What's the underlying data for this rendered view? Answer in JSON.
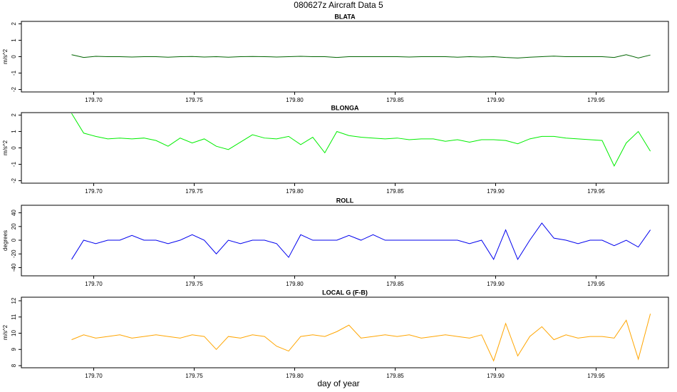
{
  "title": "080627z   Aircraft Data 5",
  "xlabel": "day of year",
  "chart_data": [
    {
      "type": "line",
      "title": "BLATA",
      "ylabel": "m/s^2",
      "color": "#006400",
      "x": [
        179.689,
        179.695,
        179.701,
        179.707,
        179.713,
        179.719,
        179.725,
        179.731,
        179.737,
        179.743,
        179.749,
        179.755,
        179.761,
        179.767,
        179.773,
        179.779,
        179.785,
        179.791,
        179.797,
        179.803,
        179.809,
        179.815,
        179.821,
        179.827,
        179.833,
        179.839,
        179.845,
        179.851,
        179.857,
        179.863,
        179.869,
        179.875,
        179.881,
        179.887,
        179.893,
        179.899,
        179.905,
        179.911,
        179.917,
        179.923,
        179.929,
        179.935,
        179.941,
        179.947,
        179.953,
        179.959,
        179.965,
        179.971,
        179.977
      ],
      "values": [
        0.12,
        -0.05,
        0.02,
        0,
        0,
        -0.02,
        0,
        0,
        -0.03,
        0,
        0.01,
        -0.02,
        0,
        -0.03,
        0,
        0.01,
        0,
        -0.02,
        0,
        0.02,
        0,
        0,
        -0.05,
        0,
        0,
        0,
        0,
        0,
        -0.02,
        0,
        0,
        0,
        -0.03,
        0,
        -0.02,
        0,
        -0.05,
        -0.08,
        -0.03,
        0,
        0.03,
        0,
        0,
        0,
        0,
        -0.05,
        0.12,
        -0.08,
        0.1
      ],
      "xlim": [
        179.664,
        179.986
      ],
      "ylim": [
        -2.15,
        2.15
      ],
      "xticks": [
        {
          "value": 179.7,
          "label": "179.70"
        },
        {
          "value": 179.75,
          "label": "179.75"
        },
        {
          "value": 179.8,
          "label": "179.80"
        },
        {
          "value": 179.85,
          "label": "179.85"
        },
        {
          "value": 179.9,
          "label": "179.90"
        },
        {
          "value": 179.95,
          "label": "179.95"
        }
      ],
      "yticks": [
        -2,
        -1,
        0,
        1,
        2
      ]
    },
    {
      "type": "line",
      "title": "BLONGA",
      "ylabel": "m/s^2",
      "color": "#00ee00",
      "x": [
        179.689,
        179.695,
        179.701,
        179.707,
        179.713,
        179.719,
        179.725,
        179.731,
        179.737,
        179.743,
        179.749,
        179.755,
        179.761,
        179.767,
        179.773,
        179.779,
        179.785,
        179.791,
        179.797,
        179.803,
        179.809,
        179.815,
        179.821,
        179.827,
        179.833,
        179.839,
        179.845,
        179.851,
        179.857,
        179.863,
        179.869,
        179.875,
        179.881,
        179.887,
        179.893,
        179.899,
        179.905,
        179.911,
        179.917,
        179.923,
        179.929,
        179.935,
        179.941,
        179.947,
        179.953,
        179.959,
        179.965,
        179.971,
        179.977
      ],
      "values": [
        2.1,
        0.9,
        0.7,
        0.55,
        0.6,
        0.55,
        0.6,
        0.45,
        0.1,
        0.6,
        0.3,
        0.55,
        0.1,
        -0.1,
        0.35,
        0.8,
        0.6,
        0.55,
        0.7,
        0.2,
        0.65,
        -0.3,
        1.0,
        0.75,
        0.65,
        0.6,
        0.55,
        0.6,
        0.5,
        0.55,
        0.55,
        0.4,
        0.5,
        0.35,
        0.5,
        0.5,
        0.45,
        0.25,
        0.55,
        0.7,
        0.7,
        0.6,
        0.55,
        0.5,
        0.45,
        -1.1,
        0.3,
        1.0,
        -0.2
      ],
      "xlim": [
        179.664,
        179.986
      ],
      "ylim": [
        -2.15,
        2.15
      ],
      "xticks": [
        {
          "value": 179.7,
          "label": "179.70"
        },
        {
          "value": 179.75,
          "label": "179.75"
        },
        {
          "value": 179.8,
          "label": "179.80"
        },
        {
          "value": 179.85,
          "label": "179.85"
        },
        {
          "value": 179.9,
          "label": "179.90"
        },
        {
          "value": 179.95,
          "label": "179.95"
        }
      ],
      "yticks": [
        -2,
        -1,
        0,
        1,
        2
      ]
    },
    {
      "type": "line",
      "title": "ROLL",
      "ylabel": "degrees",
      "color": "#0000ee",
      "x": [
        179.689,
        179.695,
        179.701,
        179.707,
        179.713,
        179.719,
        179.725,
        179.731,
        179.737,
        179.743,
        179.749,
        179.755,
        179.761,
        179.767,
        179.773,
        179.779,
        179.785,
        179.791,
        179.797,
        179.803,
        179.809,
        179.815,
        179.821,
        179.827,
        179.833,
        179.839,
        179.845,
        179.851,
        179.857,
        179.863,
        179.869,
        179.875,
        179.881,
        179.887,
        179.893,
        179.899,
        179.905,
        179.911,
        179.917,
        179.923,
        179.929,
        179.935,
        179.941,
        179.947,
        179.953,
        179.959,
        179.965,
        179.971,
        179.977
      ],
      "values": [
        -28,
        0,
        -5,
        0,
        0,
        7,
        0,
        0,
        -5,
        0,
        8,
        0,
        -20,
        0,
        -5,
        0,
        0,
        -5,
        -25,
        8,
        0,
        0,
        0,
        7,
        0,
        8,
        0,
        0,
        0,
        0,
        0,
        0,
        0,
        -5,
        0,
        -28,
        15,
        -28,
        0,
        25,
        3,
        0,
        -5,
        0,
        0,
        -8,
        0,
        -10,
        15
      ],
      "xlim": [
        179.664,
        179.986
      ],
      "ylim": [
        -52,
        51
      ],
      "xticks": [
        {
          "value": 179.7,
          "label": "179.70"
        },
        {
          "value": 179.75,
          "label": "179.75"
        },
        {
          "value": 179.8,
          "label": "179.80"
        },
        {
          "value": 179.85,
          "label": "179.85"
        },
        {
          "value": 179.9,
          "label": "179.90"
        },
        {
          "value": 179.95,
          "label": "179.95"
        }
      ],
      "yticks": [
        -40,
        -20,
        0,
        20,
        40
      ]
    },
    {
      "type": "line",
      "title": "LOCAL G (F-B)",
      "ylabel": "m/s^2",
      "color": "#ffa500",
      "x": [
        179.689,
        179.695,
        179.701,
        179.707,
        179.713,
        179.719,
        179.725,
        179.731,
        179.737,
        179.743,
        179.749,
        179.755,
        179.761,
        179.767,
        179.773,
        179.779,
        179.785,
        179.791,
        179.797,
        179.803,
        179.809,
        179.815,
        179.821,
        179.827,
        179.833,
        179.839,
        179.845,
        179.851,
        179.857,
        179.863,
        179.869,
        179.875,
        179.881,
        179.887,
        179.893,
        179.899,
        179.905,
        179.911,
        179.917,
        179.923,
        179.929,
        179.935,
        179.941,
        179.947,
        179.953,
        179.959,
        179.965,
        179.971,
        179.977
      ],
      "values": [
        9.6,
        9.9,
        9.7,
        9.8,
        9.9,
        9.7,
        9.8,
        9.9,
        9.8,
        9.7,
        9.9,
        9.8,
        9.0,
        9.8,
        9.7,
        9.9,
        9.8,
        9.2,
        8.9,
        9.8,
        9.9,
        9.8,
        10.1,
        10.5,
        9.7,
        9.8,
        9.9,
        9.8,
        9.9,
        9.7,
        9.8,
        9.9,
        9.8,
        9.7,
        9.9,
        8.3,
        10.6,
        8.6,
        9.8,
        10.4,
        9.6,
        9.9,
        9.7,
        9.8,
        9.8,
        9.7,
        10.8,
        8.4,
        11.2
      ],
      "xlim": [
        179.664,
        179.986
      ],
      "ylim": [
        7.87,
        12.22
      ],
      "xticks": [
        {
          "value": 179.7,
          "label": "179.70"
        },
        {
          "value": 179.75,
          "label": "179.75"
        },
        {
          "value": 179.8,
          "label": "179.80"
        },
        {
          "value": 179.85,
          "label": "179.85"
        },
        {
          "value": 179.9,
          "label": "179.90"
        },
        {
          "value": 179.95,
          "label": "179.95"
        }
      ],
      "yticks": [
        8,
        9,
        10,
        11,
        12
      ]
    }
  ]
}
